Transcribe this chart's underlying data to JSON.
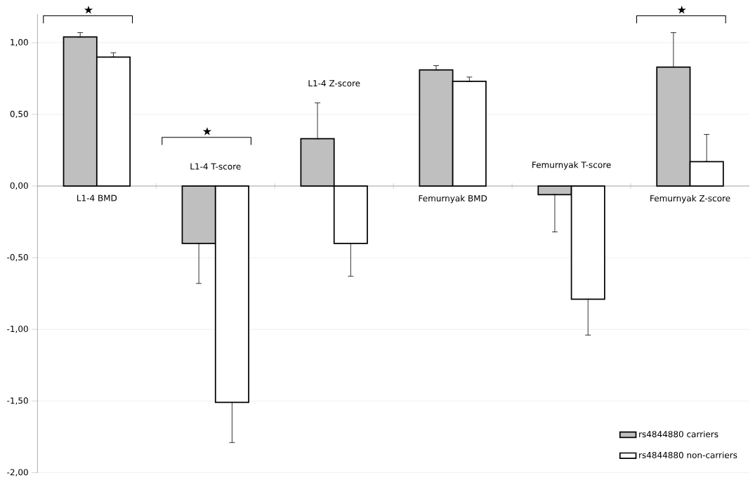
{
  "chart_data": {
    "type": "bar",
    "categories": [
      "L1-4 BMD",
      "L1-4 T-score",
      "L1-4 Z-score",
      "Femurnyak BMD",
      "Femurnyak T-score",
      "Femurnyak Z-score"
    ],
    "series": [
      {
        "name": "rs4844880 carriers",
        "color": "#bfbfbf",
        "values": [
          1.04,
          -0.4,
          0.33,
          0.81,
          -0.06,
          0.83
        ],
        "errors": [
          [
            1.04,
            1.07
          ],
          [
            -0.68,
            -0.4
          ],
          [
            0.33,
            0.58
          ],
          [
            0.81,
            0.84
          ],
          [
            -0.32,
            -0.06
          ],
          [
            0.83,
            1.07
          ]
        ]
      },
      {
        "name": "rs4844880 non-carriers",
        "color": "#ffffff",
        "values": [
          0.9,
          -1.51,
          -0.4,
          0.73,
          -0.79,
          0.17
        ],
        "errors": [
          [
            0.9,
            0.93
          ],
          [
            -1.79,
            -1.51
          ],
          [
            -0.63,
            -0.4
          ],
          [
            0.73,
            0.76
          ],
          [
            -1.04,
            -0.79
          ],
          [
            0.17,
            0.36
          ]
        ]
      }
    ],
    "ylim": [
      -2,
      1.2
    ],
    "yticks": [
      {
        "value": -2,
        "label": "-2,00"
      },
      {
        "value": -1.5,
        "label": "-1,50"
      },
      {
        "value": -1,
        "label": "-1,00"
      },
      {
        "value": -0.5,
        "label": "-0,50"
      },
      {
        "value": 0,
        "label": "0,00"
      },
      {
        "value": 0.5,
        "label": "0,50"
      },
      {
        "value": 1,
        "label": "1,00"
      }
    ],
    "grid": "y",
    "legend": "bottom right",
    "annotations": [
      "★",
      "★",
      "★"
    ]
  }
}
